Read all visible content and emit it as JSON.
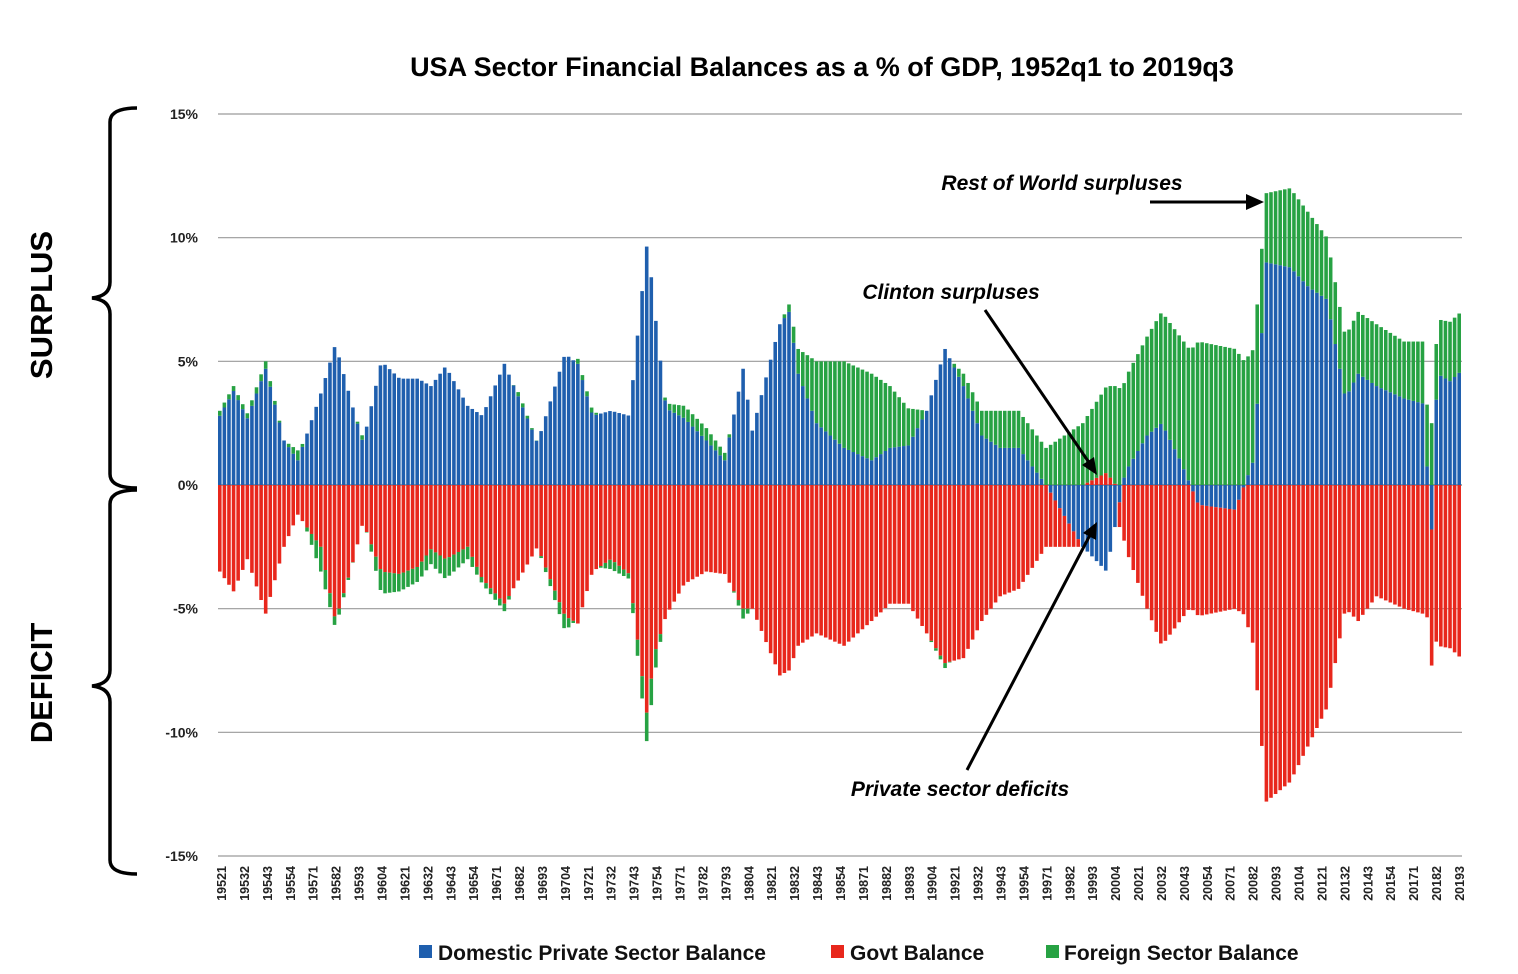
{
  "chart_data": {
    "type": "bar",
    "stacked": true,
    "title": "USA Sector Financial Balances as a % of GDP, 1952q1 to 2019q3",
    "xlabel": "",
    "ylabel": "",
    "ylim": [
      -15,
      15
    ],
    "y_ticks": [
      15,
      10,
      5,
      0,
      -5,
      -10,
      -15
    ],
    "y_tick_labels": [
      "15%",
      "10%",
      "5%",
      "0%",
      "-5%",
      "-10%",
      "-15%"
    ],
    "x_tick_labels": [
      "19521",
      "19532",
      "19543",
      "19554",
      "19571",
      "19582",
      "19593",
      "19604",
      "19621",
      "19632",
      "19643",
      "19654",
      "19671",
      "19682",
      "19693",
      "19704",
      "19721",
      "19732",
      "19743",
      "19754",
      "19771",
      "19782",
      "19793",
      "19804",
      "19821",
      "19832",
      "19843",
      "19854",
      "19871",
      "19882",
      "19893",
      "19904",
      "19921",
      "19932",
      "19943",
      "19954",
      "19971",
      "19982",
      "19993",
      "20004",
      "20021",
      "20032",
      "20043",
      "20054",
      "20071",
      "20082",
      "20093",
      "20104",
      "20121",
      "20132",
      "20143",
      "20154",
      "20171",
      "20182",
      "20193"
    ],
    "series_colors": {
      "private": "#1f5fae",
      "govt": "#e8271c",
      "foreign": "#27a243"
    },
    "legend": [
      {
        "name": "Domestic Private Sector Balance",
        "color": "#1f5fae"
      },
      {
        "name": "Govt Balance",
        "color": "#e8271c"
      },
      {
        "name": "Foreign Sector Balance",
        "color": "#27a243"
      }
    ],
    "legend_position": "bottom",
    "side_labels": {
      "top": "SURPLUS",
      "bottom": "DEFICIT"
    },
    "annotations": [
      {
        "text": "Rest of World surpluses"
      },
      {
        "text": "Clinton surpluses"
      },
      {
        "text": "Private sector deficits"
      }
    ],
    "series_keyframes": [
      {
        "name": "Domestic Private Sector Balance",
        "points": [
          [
            1952.0,
            2.8
          ],
          [
            1952.75,
            3.8
          ],
          [
            1953.5,
            2.7
          ],
          [
            1954.5,
            4.7
          ],
          [
            1955.5,
            1.8
          ],
          [
            1956.25,
            1.0
          ],
          [
            1957.5,
            3.7
          ],
          [
            1958.3,
            5.7
          ],
          [
            1959.3,
            3.0
          ],
          [
            1959.8,
            1.7
          ],
          [
            1960.8,
            5.0
          ],
          [
            1961.8,
            4.3
          ],
          [
            1962.8,
            4.3
          ],
          [
            1963.5,
            4.0
          ],
          [
            1964.3,
            4.8
          ],
          [
            1965.5,
            3.2
          ],
          [
            1966.3,
            2.8
          ],
          [
            1967.5,
            4.9
          ],
          [
            1968.3,
            3.5
          ],
          [
            1969.3,
            1.7
          ],
          [
            1970.8,
            5.3
          ],
          [
            1971.5,
            4.9
          ],
          [
            1972.3,
            2.8
          ],
          [
            1973.3,
            3.0
          ],
          [
            1974.3,
            2.8
          ],
          [
            1975.3,
            10.0
          ],
          [
            1975.6,
            7.6
          ],
          [
            1976.3,
            3.1
          ],
          [
            1977.3,
            2.7
          ],
          [
            1978.5,
            1.8
          ],
          [
            1979.5,
            1.0
          ],
          [
            1980.5,
            4.7
          ],
          [
            1981.0,
            2.2
          ],
          [
            1982.5,
            6.5
          ],
          [
            1983.0,
            7.0
          ],
          [
            1983.5,
            4.5
          ],
          [
            1984.5,
            2.5
          ],
          [
            1986.0,
            1.5
          ],
          [
            1987.5,
            1.0
          ],
          [
            1988.5,
            1.5
          ],
          [
            1989.5,
            1.6
          ],
          [
            1990.5,
            3.0
          ],
          [
            1991.5,
            5.5
          ],
          [
            1992.5,
            4.0
          ],
          [
            1993.5,
            2.0
          ],
          [
            1994.5,
            1.5
          ],
          [
            1995.5,
            1.5
          ],
          [
            1997.0,
            0.0
          ],
          [
            1999.0,
            -2.5
          ],
          [
            2000.3,
            -3.5
          ],
          [
            2000.8,
            -1.5
          ],
          [
            2001.3,
            0.5
          ],
          [
            2002.5,
            2.0
          ],
          [
            2003.3,
            2.5
          ],
          [
            2004.3,
            1.0
          ],
          [
            2005.3,
            -0.8
          ],
          [
            2007.3,
            -1.0
          ],
          [
            2008.3,
            1.0
          ],
          [
            2009.0,
            9.0
          ],
          [
            2010.3,
            8.8
          ],
          [
            2011.3,
            8.0
          ],
          [
            2012.3,
            7.5
          ],
          [
            2013.3,
            3.5
          ],
          [
            2014.0,
            4.5
          ],
          [
            2015.0,
            4.0
          ],
          [
            2016.5,
            3.5
          ],
          [
            2017.5,
            3.3
          ],
          [
            2018.0,
            -1.8
          ],
          [
            2018.3,
            4.5
          ],
          [
            2019.0,
            4.2
          ],
          [
            2019.6,
            4.6
          ]
        ]
      },
      {
        "name": "Govt Balance",
        "points": [
          [
            1952.0,
            -3.5
          ],
          [
            1952.75,
            -4.3
          ],
          [
            1953.5,
            -3.0
          ],
          [
            1954.5,
            -5.2
          ],
          [
            1955.5,
            -2.5
          ],
          [
            1956.25,
            -1.2
          ],
          [
            1957.5,
            -2.5
          ],
          [
            1958.3,
            -5.5
          ],
          [
            1959.3,
            -3.0
          ],
          [
            1959.8,
            -1.5
          ],
          [
            1960.8,
            -3.5
          ],
          [
            1961.8,
            -3.6
          ],
          [
            1962.8,
            -3.3
          ],
          [
            1963.5,
            -2.6
          ],
          [
            1964.3,
            -3.0
          ],
          [
            1965.5,
            -2.5
          ],
          [
            1966.3,
            -3.8
          ],
          [
            1967.5,
            -4.8
          ],
          [
            1968.3,
            -3.8
          ],
          [
            1969.3,
            -2.5
          ],
          [
            1970.8,
            -5.3
          ],
          [
            1971.5,
            -5.6
          ],
          [
            1972.3,
            -3.5
          ],
          [
            1973.3,
            -3.0
          ],
          [
            1974.3,
            -3.6
          ],
          [
            1975.3,
            -9.5
          ],
          [
            1975.6,
            -7.0
          ],
          [
            1976.3,
            -5.3
          ],
          [
            1977.3,
            -4.0
          ],
          [
            1978.5,
            -3.5
          ],
          [
            1979.5,
            -3.6
          ],
          [
            1980.5,
            -5.0
          ],
          [
            1981.0,
            -5.0
          ],
          [
            1982.5,
            -7.7
          ],
          [
            1983.0,
            -7.5
          ],
          [
            1983.5,
            -6.5
          ],
          [
            1984.5,
            -6.0
          ],
          [
            1986.0,
            -6.5
          ],
          [
            1987.5,
            -5.5
          ],
          [
            1988.5,
            -4.8
          ],
          [
            1989.5,
            -4.8
          ],
          [
            1990.5,
            -6.0
          ],
          [
            1991.5,
            -7.2
          ],
          [
            1992.5,
            -7.0
          ],
          [
            1993.5,
            -5.5
          ],
          [
            1994.5,
            -4.5
          ],
          [
            1995.5,
            -4.2
          ],
          [
            1997.0,
            -2.5
          ],
          [
            1999.0,
            0.0
          ],
          [
            2000.3,
            0.5
          ],
          [
            2000.8,
            0.0
          ],
          [
            2001.3,
            -2.5
          ],
          [
            2002.5,
            -5.0
          ],
          [
            2003.3,
            -6.5
          ],
          [
            2004.3,
            -5.5
          ],
          [
            2005.3,
            -4.5
          ],
          [
            2007.3,
            -4.0
          ],
          [
            2008.3,
            -6.5
          ],
          [
            2009.0,
            -12.8
          ],
          [
            2010.3,
            -12.0
          ],
          [
            2011.3,
            -10.5
          ],
          [
            2012.3,
            -9.0
          ],
          [
            2013.3,
            -5.0
          ],
          [
            2014.0,
            -5.5
          ],
          [
            2015.0,
            -4.5
          ],
          [
            2016.5,
            -5.0
          ],
          [
            2017.5,
            -5.2
          ],
          [
            2018.0,
            -5.5
          ],
          [
            2018.3,
            -6.5
          ],
          [
            2019.0,
            -6.6
          ],
          [
            2019.6,
            -7.0
          ]
        ]
      },
      {
        "name": "Foreign Sector Balance",
        "points": [
          [
            1952.0,
            0.2
          ],
          [
            1952.75,
            0.2
          ],
          [
            1953.5,
            0.2
          ],
          [
            1954.5,
            0.3
          ],
          [
            1955.5,
            0.0
          ],
          [
            1956.25,
            0.4
          ],
          [
            1957.5,
            -1.0
          ],
          [
            1958.3,
            -0.3
          ],
          [
            1959.3,
            0.0
          ],
          [
            1959.8,
            0.2
          ],
          [
            1960.8,
            -0.9
          ],
          [
            1961.8,
            -0.7
          ],
          [
            1962.8,
            -0.6
          ],
          [
            1963.5,
            -0.6
          ],
          [
            1964.3,
            -0.8
          ],
          [
            1965.5,
            -0.5
          ],
          [
            1966.3,
            -0.2
          ],
          [
            1967.5,
            -0.3
          ],
          [
            1968.3,
            0.2
          ],
          [
            1969.3,
            0.0
          ],
          [
            1970.8,
            -0.6
          ],
          [
            1971.5,
            0.2
          ],
          [
            1972.3,
            0.2
          ],
          [
            1973.3,
            -0.4
          ],
          [
            1974.3,
            -0.2
          ],
          [
            1975.3,
            -1.2
          ],
          [
            1975.6,
            -1.0
          ],
          [
            1976.3,
            0.2
          ],
          [
            1977.3,
            0.5
          ],
          [
            1978.5,
            0.5
          ],
          [
            1979.5,
            0.3
          ],
          [
            1980.5,
            -0.4
          ],
          [
            1981.0,
            0.0
          ],
          [
            1982.5,
            0.0
          ],
          [
            1983.0,
            0.3
          ],
          [
            1983.5,
            1.0
          ],
          [
            1984.5,
            2.5
          ],
          [
            1986.0,
            3.5
          ],
          [
            1987.5,
            3.5
          ],
          [
            1988.5,
            2.5
          ],
          [
            1989.5,
            1.5
          ],
          [
            1990.5,
            0.0
          ],
          [
            1991.5,
            -0.2
          ],
          [
            1992.5,
            0.5
          ],
          [
            1993.5,
            1.0
          ],
          [
            1994.5,
            1.5
          ],
          [
            1995.5,
            1.5
          ],
          [
            1997.0,
            1.5
          ],
          [
            1999.0,
            2.5
          ],
          [
            2000.3,
            3.5
          ],
          [
            2000.8,
            4.0
          ],
          [
            2001.3,
            3.8
          ],
          [
            2002.5,
            4.0
          ],
          [
            2003.3,
            4.5
          ],
          [
            2004.3,
            5.0
          ],
          [
            2005.3,
            5.8
          ],
          [
            2007.3,
            5.5
          ],
          [
            2008.3,
            4.5
          ],
          [
            2009.0,
            2.8
          ],
          [
            2010.3,
            3.2
          ],
          [
            2011.3,
            3.0
          ],
          [
            2012.3,
            2.5
          ],
          [
            2013.3,
            2.5
          ],
          [
            2014.0,
            2.5
          ],
          [
            2015.0,
            2.5
          ],
          [
            2016.5,
            2.3
          ],
          [
            2017.5,
            2.5
          ],
          [
            2018.0,
            2.5
          ],
          [
            2018.3,
            2.2
          ],
          [
            2019.0,
            2.4
          ],
          [
            2019.6,
            2.4
          ]
        ]
      }
    ]
  }
}
